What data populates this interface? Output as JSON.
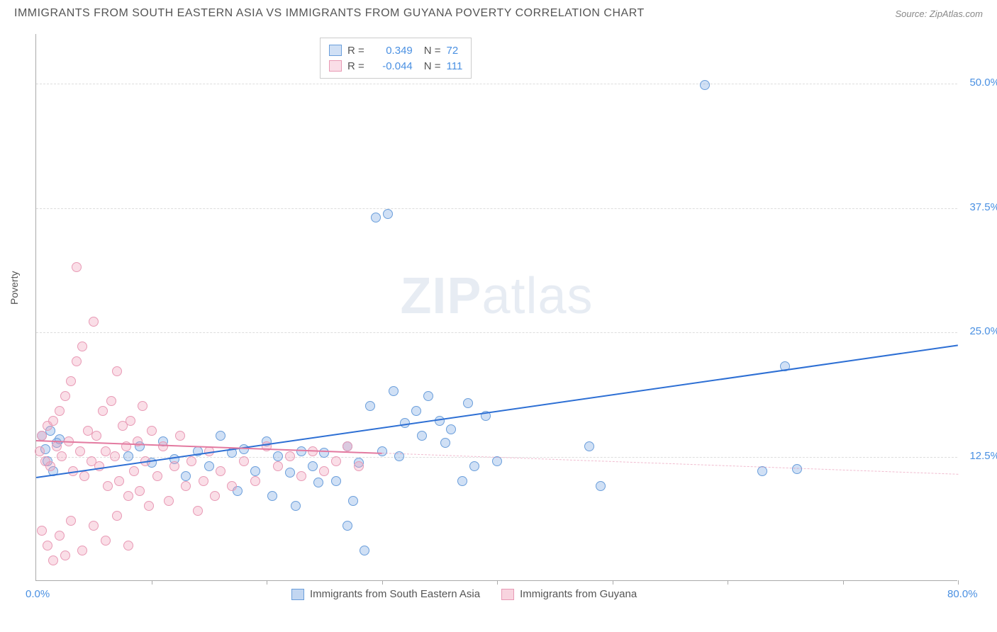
{
  "header": {
    "title": "IMMIGRANTS FROM SOUTH EASTERN ASIA VS IMMIGRANTS FROM GUYANA POVERTY CORRELATION CHART",
    "source_prefix": "Source: ",
    "source_name": "ZipAtlas.com"
  },
  "chart": {
    "type": "scatter",
    "ylabel": "Poverty",
    "xlim": [
      0,
      80
    ],
    "ylim": [
      0,
      55
    ],
    "yticks": [
      {
        "v": 12.5,
        "label": "12.5%"
      },
      {
        "v": 25.0,
        "label": "25.0%"
      },
      {
        "v": 37.5,
        "label": "37.5%"
      },
      {
        "v": 50.0,
        "label": "50.0%"
      }
    ],
    "xticks": [
      {
        "v": 0,
        "label": "0.0%"
      },
      {
        "v": 80,
        "label": "80.0%"
      }
    ],
    "xtick_marks": [
      10,
      20,
      30,
      40,
      50,
      60,
      70,
      80
    ],
    "background_color": "#ffffff",
    "grid_color": "#dddddd",
    "marker_radius": 7,
    "watermark": {
      "part1": "ZIP",
      "part2": "atlas"
    },
    "series": [
      {
        "name": "Immigrants from South Eastern Asia",
        "fill": "rgba(120,165,225,0.35)",
        "stroke": "#6a9edb",
        "trend_color": "#2d6fd4",
        "r_value": "0.349",
        "n_value": "72",
        "trend": {
          "x1": 0,
          "y1": 10.5,
          "x2": 80,
          "y2": 23.8
        },
        "dash_from_x": 80,
        "points": [
          [
            0.5,
            14.5
          ],
          [
            0.8,
            13.2
          ],
          [
            1.0,
            12.0
          ],
          [
            1.2,
            15.0
          ],
          [
            1.5,
            11.0
          ],
          [
            1.8,
            13.8
          ],
          [
            2.0,
            14.2
          ],
          [
            8,
            12.5
          ],
          [
            9,
            13.5
          ],
          [
            10,
            11.8
          ],
          [
            11,
            14.0
          ],
          [
            12,
            12.2
          ],
          [
            13,
            10.5
          ],
          [
            14,
            13.0
          ],
          [
            15,
            11.5
          ],
          [
            16,
            14.5
          ],
          [
            17,
            12.8
          ],
          [
            17.5,
            9.0
          ],
          [
            18,
            13.2
          ],
          [
            19,
            11.0
          ],
          [
            20,
            14.0
          ],
          [
            20.5,
            8.5
          ],
          [
            21,
            12.5
          ],
          [
            22,
            10.8
          ],
          [
            22.5,
            7.5
          ],
          [
            23,
            13.0
          ],
          [
            24,
            11.5
          ],
          [
            24.5,
            9.8
          ],
          [
            25,
            12.8
          ],
          [
            26,
            10.0
          ],
          [
            27,
            13.5
          ],
          [
            27.5,
            8.0
          ],
          [
            28,
            11.8
          ],
          [
            29,
            17.5
          ],
          [
            29.5,
            36.5
          ],
          [
            30,
            13.0
          ],
          [
            30.5,
            36.8
          ],
          [
            31,
            19.0
          ],
          [
            31.5,
            12.5
          ],
          [
            32,
            15.8
          ],
          [
            33,
            17.0
          ],
          [
            33.5,
            14.5
          ],
          [
            34,
            18.5
          ],
          [
            35,
            16.0
          ],
          [
            35.5,
            13.8
          ],
          [
            36,
            15.2
          ],
          [
            37,
            10.0
          ],
          [
            37.5,
            17.8
          ],
          [
            38,
            11.5
          ],
          [
            39,
            16.5
          ],
          [
            40,
            12.0
          ],
          [
            48,
            13.5
          ],
          [
            49,
            9.5
          ],
          [
            58,
            49.8
          ],
          [
            63,
            11.0
          ],
          [
            65,
            21.5
          ],
          [
            66,
            11.2
          ],
          [
            27,
            5.5
          ],
          [
            28.5,
            3.0
          ]
        ]
      },
      {
        "name": "Immigrants from Guyana",
        "fill": "rgba(240,160,185,0.35)",
        "stroke": "#e89ab5",
        "trend_color": "#e37aa0",
        "r_value": "-0.044",
        "n_value": "111",
        "trend": {
          "x1": 0,
          "y1": 14.2,
          "x2": 80,
          "y2": 10.8
        },
        "dash_from_x": 30,
        "points": [
          [
            0.3,
            13.0
          ],
          [
            0.5,
            14.5
          ],
          [
            0.8,
            12.0
          ],
          [
            1.0,
            15.5
          ],
          [
            1.2,
            11.5
          ],
          [
            1.5,
            16.0
          ],
          [
            1.8,
            13.5
          ],
          [
            2.0,
            17.0
          ],
          [
            2.2,
            12.5
          ],
          [
            2.5,
            18.5
          ],
          [
            2.8,
            14.0
          ],
          [
            3.0,
            20.0
          ],
          [
            3.2,
            11.0
          ],
          [
            3.5,
            22.0
          ],
          [
            3.8,
            13.0
          ],
          [
            4.0,
            23.5
          ],
          [
            4.2,
            10.5
          ],
          [
            4.5,
            15.0
          ],
          [
            4.8,
            12.0
          ],
          [
            5.0,
            26.0
          ],
          [
            5.2,
            14.5
          ],
          [
            5.5,
            11.5
          ],
          [
            5.8,
            17.0
          ],
          [
            6.0,
            13.0
          ],
          [
            6.2,
            9.5
          ],
          [
            6.5,
            18.0
          ],
          [
            6.8,
            12.5
          ],
          [
            7.0,
            21.0
          ],
          [
            7.2,
            10.0
          ],
          [
            7.5,
            15.5
          ],
          [
            7.8,
            13.5
          ],
          [
            8.0,
            8.5
          ],
          [
            8.2,
            16.0
          ],
          [
            8.5,
            11.0
          ],
          [
            8.8,
            14.0
          ],
          [
            9.0,
            9.0
          ],
          [
            9.2,
            17.5
          ],
          [
            9.5,
            12.0
          ],
          [
            9.8,
            7.5
          ],
          [
            10.0,
            15.0
          ],
          [
            10.5,
            10.5
          ],
          [
            11.0,
            13.5
          ],
          [
            11.5,
            8.0
          ],
          [
            12.0,
            11.5
          ],
          [
            12.5,
            14.5
          ],
          [
            13.0,
            9.5
          ],
          [
            13.5,
            12.0
          ],
          [
            14.0,
            7.0
          ],
          [
            14.5,
            10.0
          ],
          [
            15.0,
            13.0
          ],
          [
            15.5,
            8.5
          ],
          [
            16.0,
            11.0
          ],
          [
            17.0,
            9.5
          ],
          [
            18.0,
            12.0
          ],
          [
            19.0,
            10.0
          ],
          [
            20.0,
            13.5
          ],
          [
            21.0,
            11.5
          ],
          [
            22.0,
            12.5
          ],
          [
            23.0,
            10.5
          ],
          [
            24.0,
            13.0
          ],
          [
            25.0,
            11.0
          ],
          [
            26.0,
            12.0
          ],
          [
            27.0,
            13.5
          ],
          [
            28.0,
            11.5
          ],
          [
            3.5,
            31.5
          ],
          [
            0.5,
            5.0
          ],
          [
            1.0,
            3.5
          ],
          [
            2.0,
            4.5
          ],
          [
            3.0,
            6.0
          ],
          [
            4.0,
            3.0
          ],
          [
            5.0,
            5.5
          ],
          [
            6.0,
            4.0
          ],
          [
            7.0,
            6.5
          ],
          [
            8.0,
            3.5
          ],
          [
            1.5,
            2.0
          ],
          [
            2.5,
            2.5
          ]
        ]
      }
    ],
    "legend_bottom": [
      {
        "swatch_fill": "rgba(120,165,225,0.45)",
        "swatch_stroke": "#6a9edb",
        "label": "Immigrants from South Eastern Asia"
      },
      {
        "swatch_fill": "rgba(240,160,185,0.45)",
        "swatch_stroke": "#e89ab5",
        "label": "Immigrants from Guyana"
      }
    ],
    "legend_top_labels": {
      "r": "R =",
      "n": "N ="
    }
  }
}
